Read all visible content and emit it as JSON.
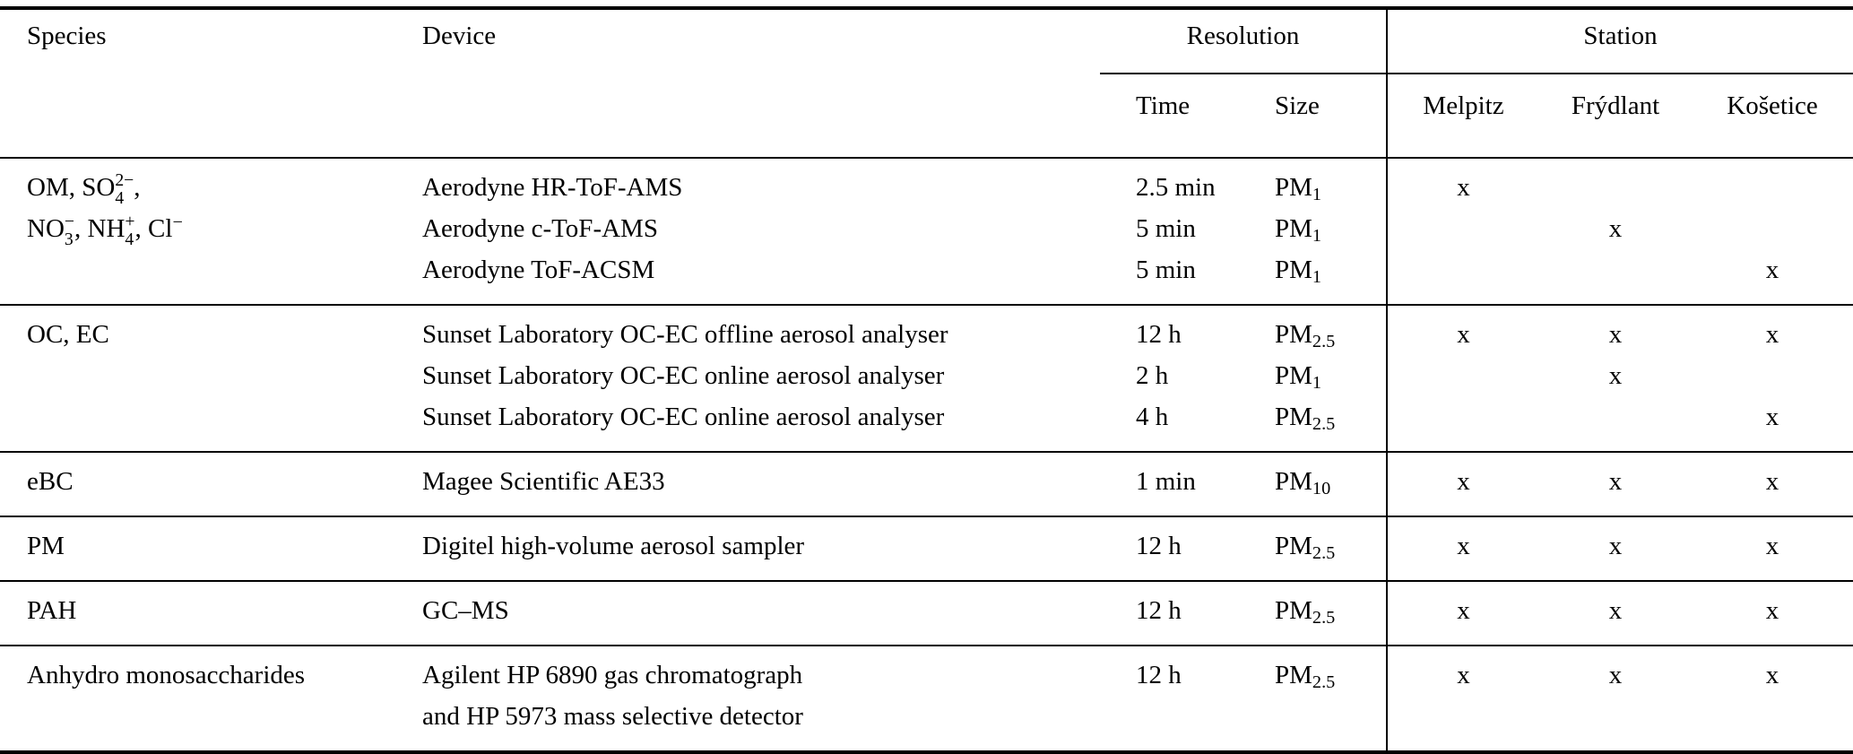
{
  "colors": {
    "background": "#ffffff",
    "text": "#000000",
    "rule": "#000000"
  },
  "table": {
    "header": {
      "species": "Species",
      "device": "Device",
      "resolution": "Resolution",
      "station": "Station",
      "time": "Time",
      "size": "Size",
      "stations": [
        "Melpitz",
        "Frýdlant",
        "Košetice"
      ]
    },
    "availability_mark": "x",
    "groups": [
      {
        "species_lines": [
          "OM, SO~{2−,4},",
          "NO~{−,3}, NH~{+,4}, Cl^{−}"
        ],
        "rows": [
          {
            "device_lines": [
              "Aerodyne HR-ToF-AMS"
            ],
            "time": "2.5 min",
            "size": "PM_{1}",
            "stations": [
              "x",
              "",
              ""
            ]
          },
          {
            "device_lines": [
              "Aerodyne c-ToF-AMS"
            ],
            "time": "5 min",
            "size": "PM_{1}",
            "stations": [
              "",
              "x",
              ""
            ]
          },
          {
            "device_lines": [
              "Aerodyne ToF-ACSM"
            ],
            "time": "5 min",
            "size": "PM_{1}",
            "stations": [
              "",
              "",
              "x"
            ]
          }
        ]
      },
      {
        "species_lines": [
          "OC, EC"
        ],
        "rows": [
          {
            "device_lines": [
              "Sunset Laboratory OC-EC offline aerosol analyser"
            ],
            "time": "12 h",
            "size": "PM_{2.5}",
            "stations": [
              "x",
              "x",
              "x"
            ]
          },
          {
            "device_lines": [
              "Sunset Laboratory OC-EC online aerosol analyser"
            ],
            "time": "2 h",
            "size": "PM_{1}",
            "stations": [
              "",
              "x",
              ""
            ]
          },
          {
            "device_lines": [
              "Sunset Laboratory OC-EC online aerosol analyser"
            ],
            "time": "4 h",
            "size": "PM_{2.5}",
            "stations": [
              "",
              "",
              "x"
            ]
          }
        ]
      },
      {
        "species_lines": [
          "eBC"
        ],
        "rows": [
          {
            "device_lines": [
              "Magee Scientific AE33"
            ],
            "time": "1 min",
            "size": "PM_{10}",
            "stations": [
              "x",
              "x",
              "x"
            ]
          }
        ]
      },
      {
        "species_lines": [
          "PM"
        ],
        "rows": [
          {
            "device_lines": [
              "Digitel high-volume aerosol sampler"
            ],
            "time": "12 h",
            "size": "PM_{2.5}",
            "stations": [
              "x",
              "x",
              "x"
            ]
          }
        ]
      },
      {
        "species_lines": [
          "PAH"
        ],
        "rows": [
          {
            "device_lines": [
              "GC–MS"
            ],
            "time": "12 h",
            "size": "PM_{2.5}",
            "stations": [
              "x",
              "x",
              "x"
            ]
          }
        ]
      },
      {
        "species_lines": [
          "Anhydro monosaccharides"
        ],
        "rows": [
          {
            "device_lines": [
              "Agilent HP 6890 gas chromatograph",
              "and HP 5973 mass selective detector"
            ],
            "time": "12 h",
            "size": "PM_{2.5}",
            "stations": [
              "x",
              "x",
              "x"
            ]
          }
        ]
      }
    ]
  }
}
